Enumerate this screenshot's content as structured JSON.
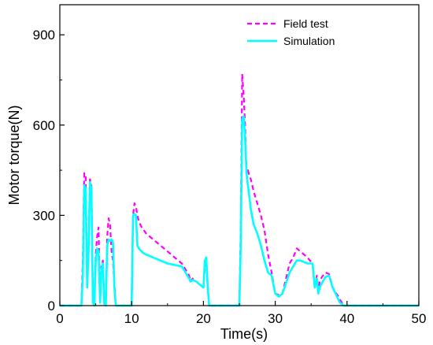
{
  "chart_data": {
    "type": "line",
    "title": "",
    "xlabel": "Time(s)",
    "ylabel": "Motor torque(N)",
    "xlim": [
      0,
      50
    ],
    "ylim": [
      0,
      1000
    ],
    "xticks": [
      0,
      10,
      20,
      30,
      40,
      50
    ],
    "yticks": [
      0,
      300,
      600,
      900
    ],
    "grid": false,
    "legend_position": "top-right",
    "series": [
      {
        "name": "Field test",
        "color": "#ff00ff",
        "dash": "dashed",
        "x": [
          0,
          3.0,
          3.2,
          3.4,
          3.6,
          3.8,
          4.0,
          4.2,
          4.4,
          4.6,
          4.8,
          5.0,
          5.2,
          5.4,
          5.6,
          5.8,
          6.0,
          6.2,
          6.4,
          6.6,
          6.8,
          7.0,
          7.2,
          7.4,
          7.6,
          7.8,
          8.0,
          8.2,
          10.0,
          10.2,
          10.4,
          10.6,
          10.8,
          11.0,
          11.2,
          11.4,
          11.6,
          12.0,
          13.0,
          14.0,
          15.0,
          16.0,
          17.0,
          18.0,
          18.2,
          18.5,
          19.0,
          19.5,
          20.0,
          20.2,
          20.4,
          20.6,
          20.8,
          21.0,
          21.2,
          21.5,
          22.0,
          25.0,
          25.2,
          25.4,
          25.6,
          25.8,
          26.0,
          26.2,
          26.4,
          26.6,
          27.0,
          27.5,
          28.0,
          28.5,
          29.0,
          29.5,
          30.0,
          30.5,
          31.0,
          31.5,
          32.0,
          32.5,
          33.0,
          33.5,
          34.0,
          34.5,
          35.0,
          35.2,
          35.5,
          35.8,
          36.0,
          36.2,
          36.5,
          37.0,
          37.5,
          38.0,
          38.3,
          38.5,
          38.8,
          39.0,
          39.3,
          39.5,
          40.0,
          45.0,
          50.0
        ],
        "y": [
          0,
          0,
          150,
          440,
          430,
          80,
          200,
          420,
          400,
          20,
          0,
          170,
          230,
          260,
          10,
          130,
          150,
          5,
          0,
          230,
          290,
          270,
          180,
          150,
          70,
          0,
          0,
          0,
          0,
          300,
          340,
          330,
          300,
          280,
          270,
          260,
          255,
          240,
          220,
          200,
          180,
          160,
          140,
          100,
          80,
          90,
          80,
          70,
          60,
          130,
          140,
          60,
          0,
          0,
          0,
          0,
          0,
          0,
          250,
          770,
          700,
          600,
          440,
          450,
          430,
          420,
          380,
          340,
          300,
          250,
          170,
          110,
          40,
          35,
          40,
          90,
          140,
          160,
          190,
          180,
          170,
          160,
          145,
          140,
          60,
          100,
          50,
          80,
          95,
          110,
          105,
          60,
          50,
          40,
          30,
          20,
          10,
          0,
          0,
          0,
          0
        ]
      },
      {
        "name": "Simulation",
        "color": "#00ffff",
        "dash": "solid",
        "x": [
          0,
          3.0,
          3.2,
          3.4,
          3.6,
          3.8,
          4.0,
          4.2,
          4.4,
          4.6,
          4.8,
          5.0,
          5.2,
          5.4,
          5.6,
          5.8,
          6.0,
          6.2,
          6.4,
          6.6,
          6.8,
          7.0,
          7.2,
          7.4,
          7.6,
          7.8,
          8.0,
          8.2,
          10.0,
          10.2,
          10.4,
          10.6,
          10.8,
          11.0,
          11.2,
          11.4,
          11.6,
          12.0,
          13.0,
          14.0,
          15.0,
          16.0,
          17.0,
          18.0,
          18.2,
          18.5,
          19.0,
          19.5,
          20.0,
          20.2,
          20.4,
          20.6,
          20.8,
          21.0,
          21.2,
          21.5,
          22.0,
          25.0,
          25.2,
          25.4,
          25.6,
          25.8,
          26.0,
          26.2,
          26.4,
          26.6,
          27.0,
          27.5,
          28.0,
          28.5,
          29.0,
          29.5,
          30.0,
          30.5,
          31.0,
          31.5,
          32.0,
          32.5,
          33.0,
          33.5,
          34.0,
          34.5,
          35.0,
          35.2,
          35.5,
          35.8,
          36.0,
          36.2,
          36.5,
          37.0,
          37.5,
          38.0,
          38.3,
          38.5,
          38.8,
          39.0,
          39.3,
          39.5,
          40.0,
          45.0,
          50.0
        ],
        "y": [
          0,
          0,
          100,
          400,
          390,
          60,
          180,
          410,
          390,
          10,
          0,
          150,
          190,
          180,
          10,
          120,
          140,
          5,
          0,
          200,
          220,
          215,
          220,
          210,
          60,
          0,
          0,
          0,
          0,
          300,
          305,
          300,
          200,
          190,
          185,
          180,
          175,
          170,
          160,
          150,
          140,
          135,
          130,
          90,
          80,
          85,
          80,
          70,
          60,
          150,
          160,
          60,
          0,
          0,
          0,
          0,
          0,
          0,
          200,
          620,
          630,
          560,
          440,
          400,
          360,
          320,
          270,
          240,
          200,
          150,
          110,
          100,
          40,
          30,
          40,
          75,
          110,
          130,
          150,
          150,
          145,
          140,
          140,
          140,
          60,
          90,
          40,
          60,
          75,
          95,
          100,
          60,
          45,
          35,
          20,
          10,
          5,
          0,
          0,
          0,
          0
        ]
      }
    ]
  }
}
